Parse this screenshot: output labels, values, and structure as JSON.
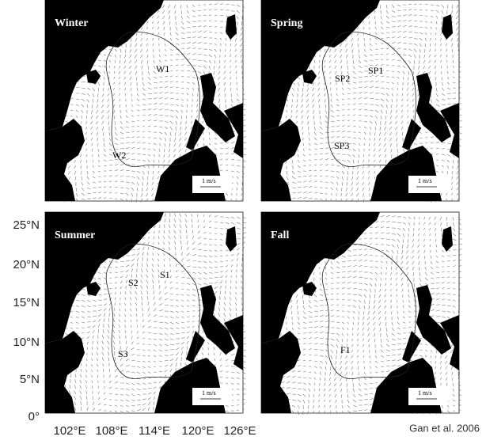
{
  "panels": [
    {
      "season": "Winter",
      "labels": [
        "W1",
        "W2"
      ],
      "scale": "1 m/s"
    },
    {
      "season": "Spring",
      "labels": [
        "SP2",
        "SP1",
        "SP3"
      ],
      "scale": "1 m/s"
    },
    {
      "season": "Summer",
      "labels": [
        "S2",
        "S1",
        "S3"
      ],
      "scale": "1 m/s"
    },
    {
      "season": "Fall",
      "labels": [
        "F1"
      ],
      "scale": "1 m/s"
    }
  ],
  "axes": {
    "lat_labels": [
      "25°N",
      "20°N",
      "15°N",
      "10°N",
      "5°N",
      "0°"
    ],
    "lon_labels": [
      "102°E",
      "108°E",
      "114°E",
      "120°E",
      "126°E"
    ]
  },
  "credit": "Gan et al. 2006"
}
